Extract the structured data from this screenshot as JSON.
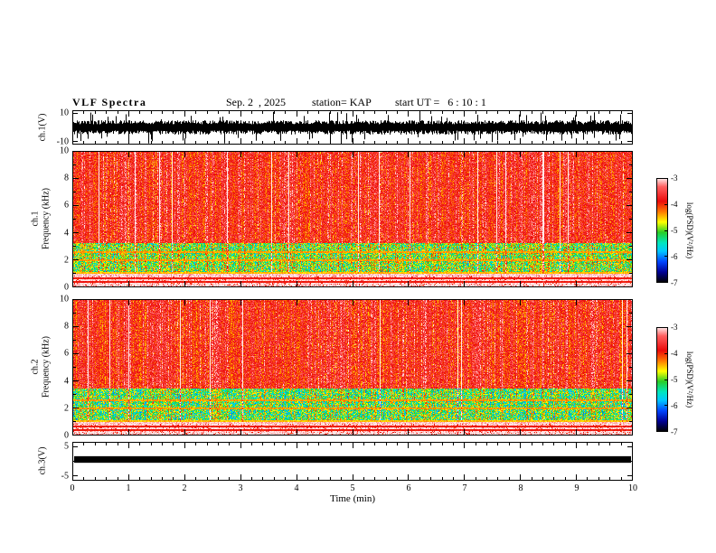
{
  "header": {
    "title": "VLF Spectra",
    "date": "Sep. 2  , 2025",
    "station": "station= KAP",
    "start_ut": "start UT =   6 : 10 : 1"
  },
  "xaxis": {
    "label": "Time (min)",
    "min": 0,
    "max": 10,
    "ticks": [
      "0",
      "1",
      "2",
      "3",
      "4",
      "5",
      "6",
      "7",
      "8",
      "9",
      "10"
    ]
  },
  "colorbar": {
    "label": "log(PSD)(V²/Hz)",
    "max": -3,
    "min": -7,
    "ticks": [
      "-3",
      "-4",
      "-5",
      "-6",
      "-7"
    ]
  },
  "chart_data": [
    {
      "type": "line",
      "panel": "ch1_waveform",
      "ylabel": "ch.1(V)",
      "ylim": [
        -12,
        12
      ],
      "ytick_values": [
        10,
        -10
      ],
      "ytick_labels": [
        "10",
        "-10"
      ],
      "series_note": "continuous broadband noise, mean envelope about ±5 V with frequent spikes reaching ±10 V over the full 0-10 min record",
      "color": "#000000",
      "seed": 101
    },
    {
      "type": "heatmap",
      "panel": "ch1_spectrogram",
      "ylabel_channel": "ch.1",
      "ylabel_axis": "Frequency (kHz)",
      "ylim": [
        0,
        10
      ],
      "ytick_values": [
        0,
        2,
        4,
        6,
        8,
        10
      ],
      "ytick_labels": [
        "0",
        "2",
        "4",
        "6",
        "8",
        "10"
      ],
      "zlim": [
        -7,
        -3
      ],
      "bands": [
        {
          "f_lo": 0.0,
          "f_hi": 0.9,
          "level": -3.05,
          "noise": 0.18,
          "stripe": 0.25,
          "speckle": 0.1,
          "speckle_level": -3.95,
          "note": "near-saturated white/pink strip with dense red speckles"
        },
        {
          "f_lo": 0.9,
          "f_hi": 3.2,
          "level": -5.0,
          "noise": 0.75,
          "stripe": 1.0,
          "speckle": 0,
          "speckle_level": 0,
          "note": "strong green/yellow band with red vertical stripes and blue specks"
        },
        {
          "f_lo": 3.2,
          "f_hi": 10.0,
          "level": -3.85,
          "noise": 0.45,
          "stripe": 1.0,
          "speckle": 0,
          "speckle_level": 0,
          "note": "red background with pink/white vertical striations"
        }
      ],
      "spectral_lines": [
        {
          "f": 0.35,
          "level": -3.9
        },
        {
          "f": 0.65,
          "level": -3.9
        },
        {
          "f": 0.88,
          "level": -3.1
        },
        {
          "f": 1.05,
          "level": -4.5
        },
        {
          "f": 1.95,
          "level": -4.4
        },
        {
          "f": 2.55,
          "level": -4.4
        }
      ],
      "seed": 202
    },
    {
      "type": "heatmap",
      "panel": "ch2_spectrogram",
      "ylabel_channel": "ch.2",
      "ylabel_axis": "Frequency (kHz)",
      "ylim": [
        0,
        10
      ],
      "ytick_values": [
        0,
        2,
        4,
        6,
        8,
        10
      ],
      "ytick_labels": [
        "0",
        "2",
        "4",
        "6",
        "8",
        "10"
      ],
      "zlim": [
        -7,
        -3
      ],
      "bands": [
        {
          "f_lo": 0.0,
          "f_hi": 0.9,
          "level": -3.05,
          "noise": 0.18,
          "stripe": 0.25,
          "speckle": 0.1,
          "speckle_level": -3.95,
          "note": "near-saturated white/pink strip with dense red speckles"
        },
        {
          "f_lo": 0.9,
          "f_hi": 3.4,
          "level": -5.1,
          "noise": 0.75,
          "stripe": 1.0,
          "speckle": 0,
          "speckle_level": 0,
          "note": "strong green/yellow band with red vertical stripes and blue specks"
        },
        {
          "f_lo": 3.4,
          "f_hi": 10.0,
          "level": -3.85,
          "noise": 0.45,
          "stripe": 1.0,
          "speckle": 0,
          "speckle_level": 0,
          "note": "red background with pink/white vertical striations"
        }
      ],
      "spectral_lines": [
        {
          "f": 0.35,
          "level": -3.9
        },
        {
          "f": 0.65,
          "level": -3.9
        },
        {
          "f": 0.88,
          "level": -3.1
        },
        {
          "f": 1.05,
          "level": -4.5
        },
        {
          "f": 1.95,
          "level": -4.4
        },
        {
          "f": 2.55,
          "level": -4.4
        }
      ],
      "seed": 303
    },
    {
      "type": "line",
      "panel": "ch3_bar",
      "ylabel": "ch.3(V)",
      "ylim": [
        -6.5,
        6.5
      ],
      "ytick_values": [
        5,
        -5
      ],
      "ytick_labels": [
        "5",
        "-5"
      ],
      "bar_value_range": [
        -0.5,
        1.7
      ],
      "series_note": "flat saturated trace rendered as a solid black band at roughly -0.5 to +1.7 V across the whole record",
      "color": "#000000",
      "seed": 404
    }
  ]
}
